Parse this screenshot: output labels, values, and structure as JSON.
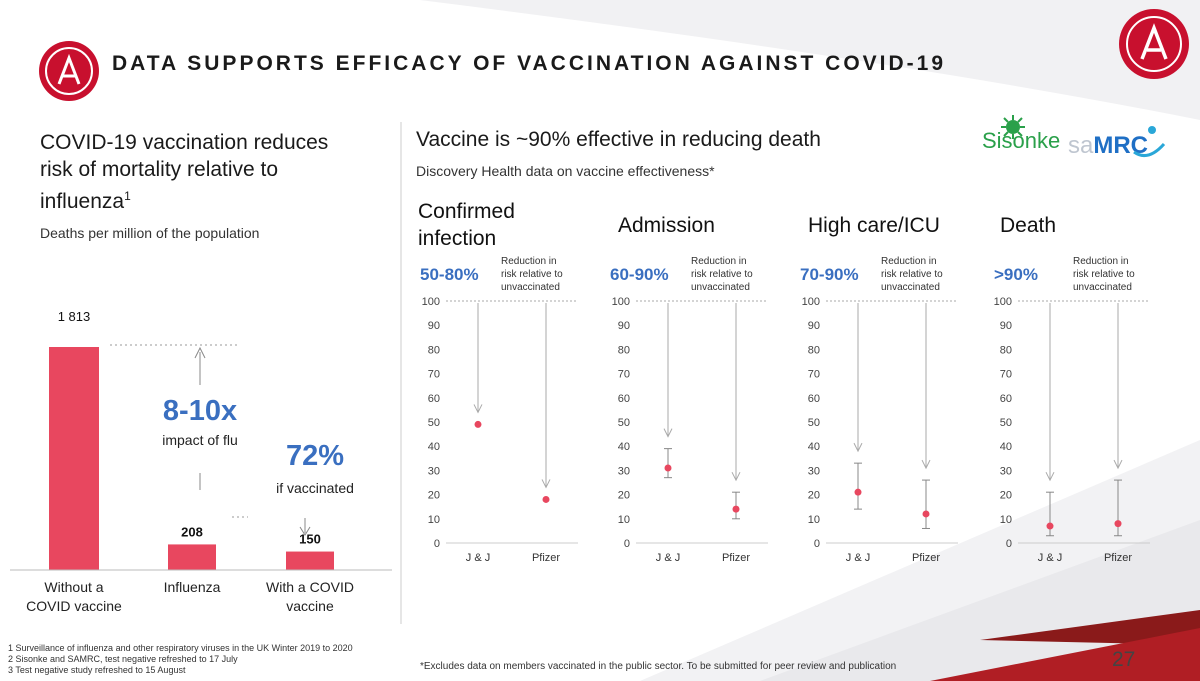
{
  "header": {
    "title": "DATA SUPPORTS EFFICACY OF VACCINATION AGAINST COVID-19"
  },
  "left": {
    "heading_line1": "COVID-19 vaccination reduces",
    "heading_line2": "risk of mortality relative to",
    "heading_line3": "influenza",
    "heading_sup": "1",
    "subtitle": "Deaths per million of the population",
    "callout_big": "8-10x",
    "callout_small": "impact of flu",
    "callout2_big": "72%",
    "callout2_small": "if vaccinated"
  },
  "right": {
    "heading": "Vaccine is ~90% effective in reducing death",
    "subtitle": "Discovery Health data on vaccine effectiveness*",
    "logo1": "Sisonke",
    "logo2_a": "sa",
    "logo2_b": "MRC",
    "panel_note": "Reduction in risk relative to unvaccinated"
  },
  "footnotes": {
    "f1": "1 Surveillance of influenza and other respiratory viruses in the UK Winter 2019 to 2020",
    "f2": "2 Sisonke and SAMRC, test negative refreshed to 17 July",
    "f3": "3 Test negative study refreshed to 15 August",
    "right": "*Excludes data on members vaccinated in the public sector. To be submitted for peer review and publication"
  },
  "page_number": "27",
  "colors": {
    "accent": "#e8475f",
    "blue": "#3a6fc0",
    "logo_red": "#c8102e"
  },
  "chart_data": [
    {
      "type": "bar",
      "categories": [
        "Without a COVID vaccine",
        "Influenza",
        "With a COVID vaccine"
      ],
      "category_lines": [
        [
          "Without a",
          "COVID vaccine"
        ],
        [
          "Influenza"
        ],
        [
          "With a COVID",
          "vaccine"
        ]
      ],
      "values": [
        1813,
        208,
        150
      ],
      "value_labels": [
        "1 813",
        "208",
        "150"
      ],
      "ylabel": "",
      "ylim": [
        0,
        2000
      ]
    },
    {
      "type": "scatter",
      "title_lines": [
        "Confirmed",
        "infection"
      ],
      "range_label": "50-80%",
      "categories": [
        "J & J",
        "Pfizer"
      ],
      "points": [
        {
          "x": "J & J",
          "y": 49,
          "low": null,
          "high": null
        },
        {
          "x": "Pfizer",
          "y": 18,
          "low": null,
          "high": null
        }
      ],
      "y_ticks": [
        0,
        10,
        20,
        30,
        40,
        50,
        60,
        70,
        80,
        90,
        100
      ],
      "ylim": [
        0,
        100
      ]
    },
    {
      "type": "scatter",
      "title_lines": [
        "Admission"
      ],
      "range_label": "60-90%",
      "categories": [
        "J & J",
        "Pfizer"
      ],
      "points": [
        {
          "x": "J & J",
          "y": 31,
          "low": 27,
          "high": 39
        },
        {
          "x": "Pfizer",
          "y": 14,
          "low": 10,
          "high": 21
        }
      ],
      "y_ticks": [
        0,
        10,
        20,
        30,
        40,
        50,
        60,
        70,
        80,
        90,
        100
      ],
      "ylim": [
        0,
        100
      ]
    },
    {
      "type": "scatter",
      "title_lines": [
        "High care/ICU"
      ],
      "range_label": "70-90%",
      "categories": [
        "J & J",
        "Pfizer"
      ],
      "points": [
        {
          "x": "J & J",
          "y": 21,
          "low": 14,
          "high": 33
        },
        {
          "x": "Pfizer",
          "y": 12,
          "low": 6,
          "high": 26
        }
      ],
      "y_ticks": [
        0,
        10,
        20,
        30,
        40,
        50,
        60,
        70,
        80,
        90,
        100
      ],
      "ylim": [
        0,
        100
      ]
    },
    {
      "type": "scatter",
      "title_lines": [
        "Death"
      ],
      "range_label": ">90%",
      "categories": [
        "J & J",
        "Pfizer"
      ],
      "points": [
        {
          "x": "J & J",
          "y": 7,
          "low": 3,
          "high": 21
        },
        {
          "x": "Pfizer",
          "y": 8,
          "low": 3,
          "high": 26
        }
      ],
      "y_ticks": [
        0,
        10,
        20,
        30,
        40,
        50,
        60,
        70,
        80,
        90,
        100
      ],
      "ylim": [
        0,
        100
      ]
    }
  ]
}
